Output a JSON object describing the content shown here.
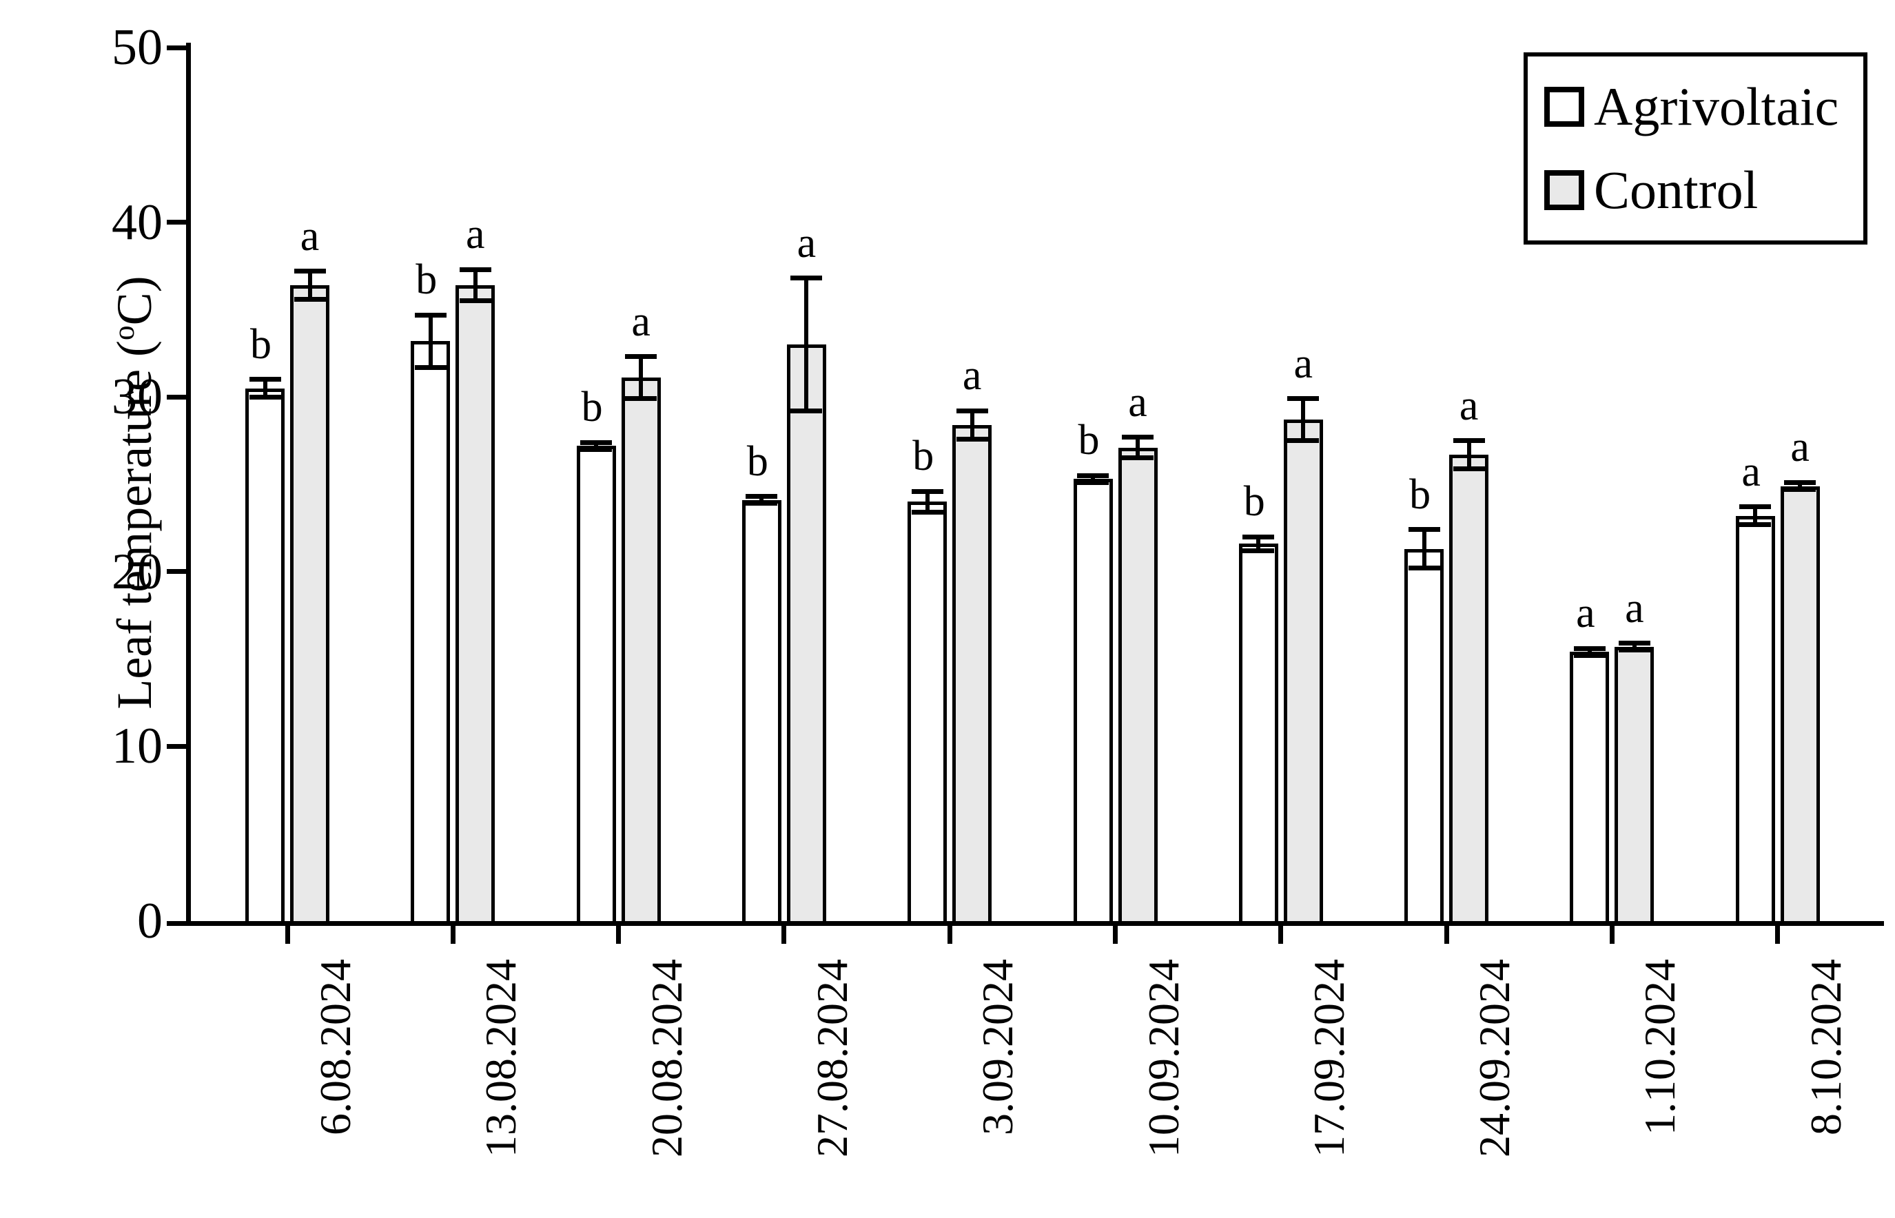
{
  "chart_data": {
    "type": "bar",
    "title": "",
    "ylabel_prefix": "Leaf temperature (",
    "ylabel_sup": "o",
    "ylabel_suffix": "C)",
    "xlabel": "",
    "ylim": [
      0,
      50
    ],
    "yticks": [
      0,
      10,
      20,
      30,
      40,
      50
    ],
    "grid": false,
    "legend_position": "top-right",
    "bar_border_color": "#000000",
    "error_bar_color": "#000000",
    "categories": [
      "6.08.2024",
      "13.08.2024",
      "20.08.2024",
      "27.08.2024",
      "3.09.2024",
      "10.09.2024",
      "17.09.2024",
      "24.09.2024",
      "1.10.2024",
      "8.10.2024"
    ],
    "series": [
      {
        "name": "Agrivoltaic",
        "fill": "#ffffff",
        "values": [
          30.5,
          33.2,
          27.2,
          24.1,
          24.0,
          25.3,
          21.6,
          21.3,
          15.4,
          23.2
        ],
        "errors": [
          0.5,
          1.5,
          0.2,
          0.2,
          0.6,
          0.2,
          0.4,
          1.1,
          0.2,
          0.5
        ],
        "letters": [
          "b",
          "b",
          "b",
          "b",
          "b",
          "b",
          "b",
          "b",
          "a",
          "a"
        ]
      },
      {
        "name": "Control",
        "fill": "#e9e9e9",
        "values": [
          36.4,
          36.4,
          31.1,
          33.0,
          28.4,
          27.1,
          28.7,
          26.7,
          15.7,
          24.9
        ],
        "errors": [
          0.8,
          0.9,
          1.2,
          3.8,
          0.8,
          0.6,
          1.2,
          0.8,
          0.2,
          0.2
        ],
        "letters": [
          "a",
          "a",
          "a",
          "a",
          "a",
          "a",
          "a",
          "a",
          "a",
          "a"
        ]
      }
    ]
  }
}
